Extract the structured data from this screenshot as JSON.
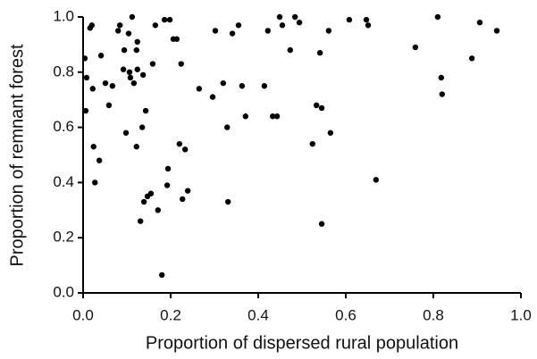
{
  "chart_data": {
    "type": "scatter",
    "xlabel": "Proportion of dispersed rural population",
    "ylabel": "Proportion of remnant forest",
    "color": "#000000",
    "xlim": [
      0,
      1
    ],
    "ylim": [
      0,
      1
    ],
    "xticks": [
      {
        "value": 0,
        "label": "0.0"
      },
      0.2,
      0.4,
      0.6,
      0.8,
      {
        "value": 1,
        "label": "1.0"
      }
    ],
    "yticks": [
      {
        "value": 0,
        "label": "0.0"
      },
      0.2,
      0.4,
      0.6,
      0.8,
      {
        "value": 1,
        "label": "1.0"
      }
    ],
    "x": [
      0.004,
      0.006,
      0.008,
      0.016,
      0.02,
      0.022,
      0.024,
      0.027,
      0.037,
      0.041,
      0.051,
      0.059,
      0.067,
      0.08,
      0.084,
      0.094,
      0.092,
      0.098,
      0.106,
      0.104,
      0.108,
      0.112,
      0.116,
      0.122,
      0.124,
      0.122,
      0.124,
      0.131,
      0.135,
      0.137,
      0.139,
      0.143,
      0.147,
      0.159,
      0.155,
      0.165,
      0.171,
      0.18,
      0.186,
      0.192,
      0.194,
      0.198,
      0.206,
      0.214,
      0.22,
      0.224,
      0.227,
      0.233,
      0.239,
      0.265,
      0.296,
      0.302,
      0.32,
      0.329,
      0.331,
      0.341,
      0.355,
      0.363,
      0.371,
      0.414,
      0.422,
      0.433,
      0.443,
      0.449,
      0.455,
      0.473,
      0.484,
      0.494,
      0.524,
      0.533,
      0.541,
      0.545,
      0.545,
      0.561,
      0.565,
      0.608,
      0.647,
      0.651,
      0.669,
      0.759,
      0.81,
      0.818,
      0.82,
      0.888,
      0.906,
      0.945
    ],
    "values": [
      0.85,
      0.66,
      0.78,
      0.96,
      0.97,
      0.74,
      0.53,
      0.4,
      0.48,
      0.86,
      0.76,
      0.68,
      0.75,
      0.95,
      0.97,
      0.88,
      0.81,
      0.58,
      0.8,
      0.94,
      0.78,
      1.0,
      0.76,
      0.88,
      0.81,
      0.53,
      0.91,
      0.26,
      0.6,
      0.79,
      0.33,
      0.66,
      0.35,
      0.83,
      0.36,
      0.97,
      0.3,
      0.065,
      0.99,
      0.39,
      0.45,
      0.99,
      0.92,
      0.92,
      0.54,
      0.83,
      0.34,
      0.52,
      0.37,
      0.74,
      0.71,
      0.95,
      0.76,
      0.6,
      0.33,
      0.94,
      0.97,
      0.75,
      0.64,
      0.75,
      0.95,
      0.64,
      0.64,
      1.0,
      0.97,
      0.88,
      1.0,
      0.98,
      0.54,
      0.68,
      0.87,
      0.67,
      0.25,
      0.95,
      0.58,
      0.99,
      0.99,
      0.97,
      0.41,
      0.89,
      1.0,
      0.78,
      0.72,
      0.85,
      0.98,
      0.95
    ]
  }
}
